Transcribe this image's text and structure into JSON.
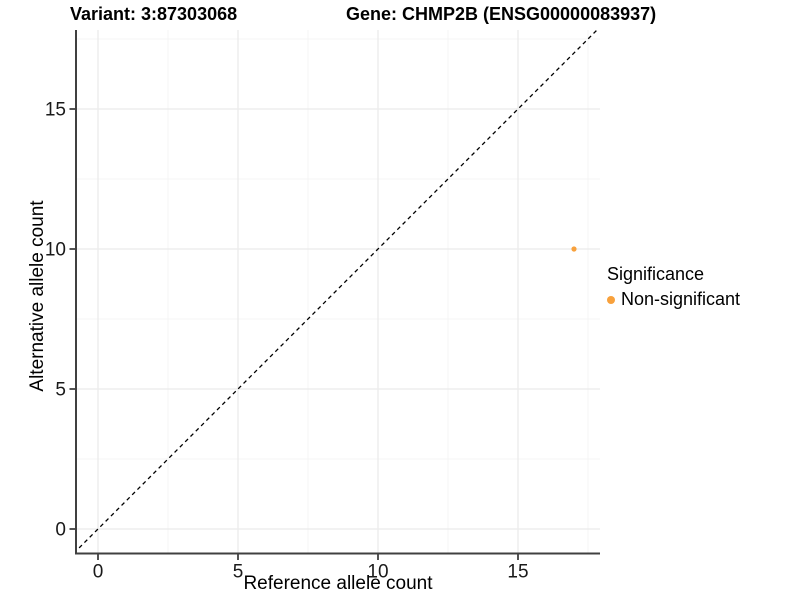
{
  "chart_data": {
    "type": "scatter",
    "title_left": "Variant: 3:87303068",
    "title_right": "Gene: CHMP2B (ENSG00000083937)",
    "xlabel": "Reference allele count",
    "ylabel": "Alternative allele count",
    "x_ticks": [
      0,
      5,
      10,
      15
    ],
    "y_ticks": [
      0,
      5,
      10,
      15
    ],
    "x_minor_gridlines": [
      2.5,
      7.5,
      12.5,
      17.5
    ],
    "y_minor_gridlines": [
      2.5,
      7.5,
      12.5,
      17.5
    ],
    "xlim": [
      -0.875,
      17.93
    ],
    "ylim": [
      -0.875,
      17.82
    ],
    "grid": "major and minor, light gray on white",
    "legend_position": "right",
    "identity_line": {
      "meaning": "y = x",
      "style": "dashed",
      "color": "#000000"
    },
    "points": [
      {
        "x": 17,
        "y": 10,
        "group": "Non-significant"
      }
    ],
    "legend": {
      "title": "Significance",
      "entries": [
        {
          "label": "Non-significant",
          "color": "#F8A13C"
        }
      ]
    },
    "colors": {
      "point": "#F8A13C",
      "grid_major": "#EBEBEB",
      "grid_minor": "#F4F4F4",
      "axis_line": "#404040",
      "tick_label": "#1a1a1a"
    }
  }
}
